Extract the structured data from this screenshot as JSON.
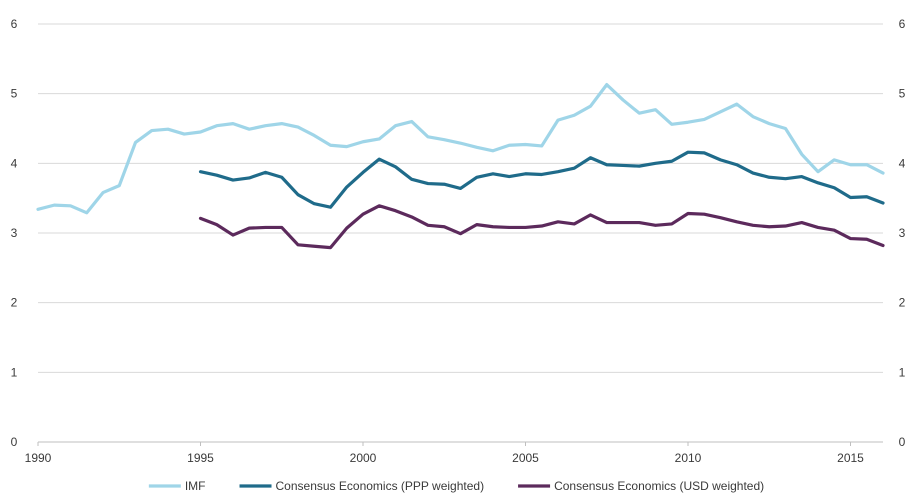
{
  "chart_data": {
    "type": "line",
    "title": "",
    "xlabel": "",
    "ylabel": "",
    "xlim": [
      1990,
      2016
    ],
    "ylim": [
      0,
      6
    ],
    "x_ticks": [
      1990,
      1995,
      2000,
      2005,
      2010,
      2015
    ],
    "x_tick_labels": [
      "1990",
      "1995",
      "2000",
      "2005",
      "2010",
      "2015"
    ],
    "y_ticks": [
      0,
      1,
      2,
      3,
      4,
      5,
      6
    ],
    "y_tick_labels_left": [
      "0",
      "1",
      "2",
      "3",
      "4",
      "5",
      "6"
    ],
    "y_tick_labels_right": [
      "0",
      "1",
      "2",
      "3",
      "4",
      "5",
      "6"
    ],
    "grid": true,
    "legend_position": "bottom",
    "series": [
      {
        "name": "IMF",
        "color": "#9fd5e8",
        "x": [
          1990,
          1990.5,
          1991,
          1991.5,
          1992,
          1992.5,
          1993,
          1993.5,
          1994,
          1994.5,
          1995,
          1995.5,
          1996,
          1996.5,
          1997,
          1997.5,
          1998,
          1998.5,
          1999,
          1999.5,
          2000,
          2000.5,
          2001,
          2001.5,
          2002,
          2002.5,
          2003,
          2003.5,
          2004,
          2004.5,
          2005,
          2005.5,
          2006,
          2006.5,
          2007,
          2007.5,
          2008,
          2008.5,
          2009,
          2009.5,
          2010,
          2010.5,
          2011,
          2011.5,
          2012,
          2012.5,
          2013,
          2013.5,
          2014,
          2014.5,
          2015,
          2015.5,
          2016
        ],
        "values": [
          3.34,
          3.4,
          3.39,
          3.29,
          3.58,
          3.68,
          4.3,
          4.47,
          4.49,
          4.42,
          4.45,
          4.54,
          4.57,
          4.49,
          4.54,
          4.57,
          4.52,
          4.4,
          4.26,
          4.24,
          4.31,
          4.35,
          4.54,
          4.6,
          4.38,
          4.34,
          4.29,
          4.23,
          4.18,
          4.26,
          4.27,
          4.25,
          4.62,
          4.69,
          4.82,
          5.13,
          4.91,
          4.72,
          4.77,
          4.56,
          4.59,
          4.63,
          4.74,
          4.85,
          4.67,
          4.57,
          4.5,
          4.13,
          3.88,
          4.05,
          3.98,
          3.98,
          3.86
        ]
      },
      {
        "name": "Consensus Economics (PPP weighted)",
        "color": "#1f6b8a",
        "x": [
          1995,
          1995.5,
          1996,
          1996.5,
          1997,
          1997.5,
          1998,
          1998.5,
          1999,
          1999.5,
          2000,
          2000.5,
          2001,
          2001.5,
          2002,
          2002.5,
          2003,
          2003.5,
          2004,
          2004.5,
          2005,
          2005.5,
          2006,
          2006.5,
          2007,
          2007.5,
          2008,
          2008.5,
          2009,
          2009.5,
          2010,
          2010.5,
          2011,
          2011.5,
          2012,
          2012.5,
          2013,
          2013.5,
          2014,
          2014.5,
          2015,
          2015.5,
          2016
        ],
        "values": [
          3.88,
          3.83,
          3.76,
          3.79,
          3.87,
          3.8,
          3.55,
          3.42,
          3.37,
          3.66,
          3.87,
          4.06,
          3.95,
          3.77,
          3.71,
          3.7,
          3.64,
          3.8,
          3.85,
          3.81,
          3.85,
          3.84,
          3.88,
          3.93,
          4.08,
          3.98,
          3.97,
          3.96,
          4.0,
          4.03,
          4.16,
          4.15,
          4.05,
          3.98,
          3.86,
          3.8,
          3.78,
          3.81,
          3.72,
          3.65,
          3.51,
          3.52,
          3.43
        ]
      },
      {
        "name": "Consensus Economics (USD weighted)",
        "color": "#5c2a5c",
        "x": [
          1995,
          1995.5,
          1996,
          1996.5,
          1997,
          1997.5,
          1998,
          1998.5,
          1999,
          1999.5,
          2000,
          2000.5,
          2001,
          2001.5,
          2002,
          2002.5,
          2003,
          2003.5,
          2004,
          2004.5,
          2005,
          2005.5,
          2006,
          2006.5,
          2007,
          2007.5,
          2008,
          2008.5,
          2009,
          2009.5,
          2010,
          2010.5,
          2011,
          2011.5,
          2012,
          2012.5,
          2013,
          2013.5,
          2014,
          2014.5,
          2015,
          2015.5,
          2016
        ],
        "values": [
          3.21,
          3.12,
          2.97,
          3.07,
          3.08,
          3.08,
          2.83,
          2.81,
          2.79,
          3.07,
          3.27,
          3.39,
          3.32,
          3.23,
          3.11,
          3.09,
          2.99,
          3.12,
          3.09,
          3.08,
          3.08,
          3.1,
          3.16,
          3.13,
          3.26,
          3.15,
          3.15,
          3.15,
          3.11,
          3.13,
          3.28,
          3.27,
          3.22,
          3.16,
          3.11,
          3.09,
          3.1,
          3.15,
          3.08,
          3.04,
          2.92,
          2.91,
          2.82
        ]
      }
    ]
  }
}
